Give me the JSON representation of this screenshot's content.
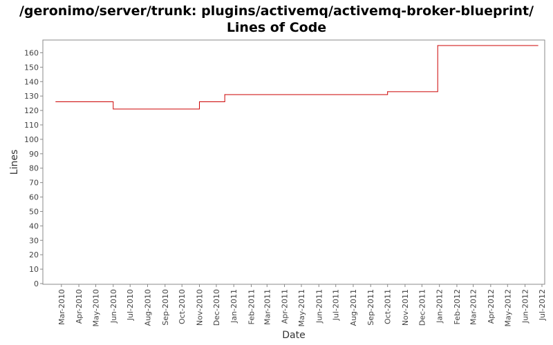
{
  "chart_data": {
    "type": "line",
    "title": "/geronimo/server/trunk: plugins/activemq/activemq-broker-blueprint/",
    "subtitle": "Lines of Code",
    "xlabel": "Date",
    "ylabel": "Lines",
    "ylim": [
      0,
      165
    ],
    "yticks": [
      0,
      10,
      20,
      30,
      40,
      50,
      60,
      70,
      80,
      90,
      100,
      110,
      120,
      130,
      140,
      150,
      160
    ],
    "xlim": [
      "2010-02-01",
      "2012-07-01"
    ],
    "xticks": [
      {
        "date": "2010-03-01",
        "label": "Mar-2010"
      },
      {
        "date": "2010-04-01",
        "label": "Apr-2010"
      },
      {
        "date": "2010-05-01",
        "label": "May-2010"
      },
      {
        "date": "2010-06-01",
        "label": "Jun-2010"
      },
      {
        "date": "2010-07-01",
        "label": "Jul-2010"
      },
      {
        "date": "2010-08-01",
        "label": "Aug-2010"
      },
      {
        "date": "2010-09-01",
        "label": "Sep-2010"
      },
      {
        "date": "2010-10-01",
        "label": "Oct-2010"
      },
      {
        "date": "2010-11-01",
        "label": "Nov-2010"
      },
      {
        "date": "2010-12-01",
        "label": "Dec-2010"
      },
      {
        "date": "2011-01-01",
        "label": "Jan-2011"
      },
      {
        "date": "2011-02-01",
        "label": "Feb-2011"
      },
      {
        "date": "2011-03-01",
        "label": "Mar-2011"
      },
      {
        "date": "2011-04-01",
        "label": "Apr-2011"
      },
      {
        "date": "2011-05-01",
        "label": "May-2011"
      },
      {
        "date": "2011-06-01",
        "label": "Jun-2011"
      },
      {
        "date": "2011-07-01",
        "label": "Jul-2011"
      },
      {
        "date": "2011-08-01",
        "label": "Aug-2011"
      },
      {
        "date": "2011-09-01",
        "label": "Sep-2011"
      },
      {
        "date": "2011-10-01",
        "label": "Oct-2011"
      },
      {
        "date": "2011-11-01",
        "label": "Nov-2011"
      },
      {
        "date": "2011-12-01",
        "label": "Dec-2011"
      },
      {
        "date": "2012-01-01",
        "label": "Jan-2012"
      },
      {
        "date": "2012-02-01",
        "label": "Feb-2012"
      },
      {
        "date": "2012-03-01",
        "label": "Mar-2012"
      },
      {
        "date": "2012-04-01",
        "label": "Apr-2012"
      },
      {
        "date": "2012-05-01",
        "label": "May-2012"
      },
      {
        "date": "2012-06-01",
        "label": "Jun-2012"
      },
      {
        "date": "2012-07-01",
        "label": "Jul-2012"
      }
    ],
    "step": true,
    "series": [
      {
        "color": "#cc0000",
        "points": [
          {
            "x": "2010-02-19",
            "y": 126
          },
          {
            "x": "2010-06-01",
            "y": 121
          },
          {
            "x": "2010-11-01",
            "y": 126
          },
          {
            "x": "2010-12-16",
            "y": 131
          },
          {
            "x": "2011-10-01",
            "y": 133
          },
          {
            "x": "2011-12-29",
            "y": 165
          },
          {
            "x": "2012-06-24",
            "y": 165
          }
        ]
      }
    ],
    "grid": false,
    "legend": "none"
  }
}
